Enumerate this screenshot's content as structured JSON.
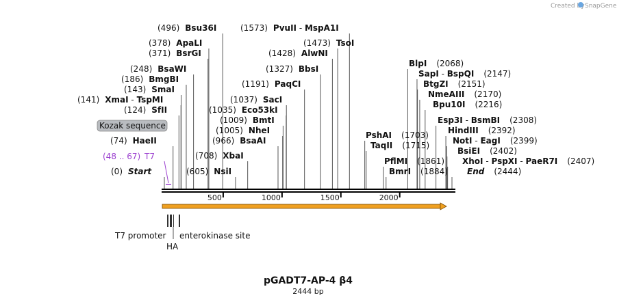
{
  "credit": {
    "created_by": "Created by",
    "brand": "SnapGene"
  },
  "plasmid": {
    "name": "pGADT7-AP-4 β4",
    "length_label": "2444 bp",
    "length_bp": 2444
  },
  "ruler": {
    "ticks": [
      500,
      1000,
      1500,
      2000
    ]
  },
  "colors": {
    "backbone": "#000000",
    "orf_fill": "#f0a020",
    "orf_edge": "#7a4a00",
    "primer": "#9b3fcf",
    "kozak_fill": "#b9bcc0",
    "leader": "#555555"
  },
  "sites": [
    {
      "pos": "(496)",
      "name": "Bsu36I",
      "bp": 496
    },
    {
      "pos": "(378)",
      "name": "ApaLI",
      "bp": 378
    },
    {
      "pos": "(371)",
      "name": "BsrGI",
      "bp": 371
    },
    {
      "pos": "(248)",
      "name": "BsaWI",
      "bp": 248
    },
    {
      "pos": "(186)",
      "name": "BmgBI",
      "bp": 186
    },
    {
      "pos": "(143)",
      "name": "SmaI",
      "bp": 143
    },
    {
      "pos": "(141)",
      "name": "XmaI",
      "alt": "TspMI",
      "bp": 141
    },
    {
      "pos": "(124)",
      "name": "SfII",
      "bp": 124
    },
    {
      "pos": "(74)",
      "name": "HaeII",
      "bp": 74
    },
    {
      "pos": "(0)",
      "name": "Start",
      "bp": 0,
      "italic": true
    },
    {
      "pos": "(1573)",
      "name": "PvuII",
      "alt": "MspA1I",
      "bp": 1573
    },
    {
      "pos": "(1473)",
      "name": "TsoI",
      "bp": 1473
    },
    {
      "pos": "(1428)",
      "name": "AlwNI",
      "bp": 1428
    },
    {
      "pos": "(1327)",
      "name": "BbsI",
      "bp": 1327
    },
    {
      "pos": "(1191)",
      "name": "PaqCI",
      "bp": 1191
    },
    {
      "pos": "(1037)",
      "name": "SacI",
      "bp": 1037
    },
    {
      "pos": "(1035)",
      "name": "Eco53kI",
      "bp": 1035
    },
    {
      "pos": "(1009)",
      "name": "BmtI",
      "bp": 1009
    },
    {
      "pos": "(1005)",
      "name": "NheI",
      "bp": 1005
    },
    {
      "pos": "(966)",
      "name": "BsaAI",
      "bp": 966
    },
    {
      "pos": "(708)",
      "name": "XbaI",
      "bp": 708
    },
    {
      "pos": "(605)",
      "name": "NsiI",
      "bp": 605
    },
    {
      "pos": "(2068)",
      "name": "BlpI",
      "bp": 2068
    },
    {
      "pos": "(2147)",
      "name": "SapI",
      "alt": "BspQI",
      "bp": 2147
    },
    {
      "pos": "(2151)",
      "name": "BtgZI",
      "bp": 2151
    },
    {
      "pos": "(2170)",
      "name": "NmeAIII",
      "bp": 2170
    },
    {
      "pos": "(2216)",
      "name": "Bpu10I",
      "bp": 2216
    },
    {
      "pos": "(2308)",
      "name": "Esp3I",
      "alt": "BsmBI",
      "bp": 2308
    },
    {
      "pos": "(2392)",
      "name": "HindIII",
      "bp": 2392
    },
    {
      "pos": "(2399)",
      "name": "NotI",
      "alt": "EagI",
      "bp": 2399
    },
    {
      "pos": "(2402)",
      "name": "BsiEI",
      "bp": 2402
    },
    {
      "pos": "(2407)",
      "name": "XhoI",
      "alt": "PspXI",
      "alt2": "PaeR7I",
      "bp": 2407
    },
    {
      "pos": "(2444)",
      "name": "End",
      "bp": 2444,
      "italic": true
    },
    {
      "pos": "(1703)",
      "name": "PshAI",
      "bp": 1703
    },
    {
      "pos": "(1715)",
      "name": "TaqII",
      "bp": 1715
    },
    {
      "pos": "(1861)",
      "name": "PflMI",
      "bp": 1861
    },
    {
      "pos": "(1884)",
      "name": "BmrI",
      "bp": 1884
    }
  ],
  "primer": {
    "range": "(48 .. 67)",
    "name": "T7",
    "start": 48,
    "end": 67
  },
  "kozak": {
    "label": "Kozak sequence"
  },
  "features": {
    "t7_promoter": "T7 promoter",
    "enterokinase": "enterokinase site",
    "ha": "HA"
  }
}
